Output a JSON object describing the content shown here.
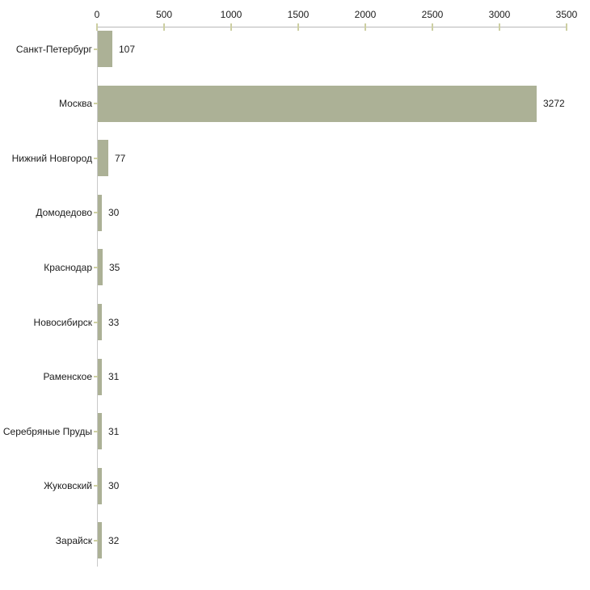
{
  "chart_data": {
    "type": "bar",
    "orientation": "horizontal",
    "title": "",
    "xlabel": "",
    "ylabel": "",
    "categories": [
      "Санкт-Петербург",
      "Москва",
      "Нижний Новгород",
      "Домодедово",
      "Краснодар",
      "Новосибирск",
      "Раменское",
      "Серебряные Пруды",
      "Жуковский",
      "Зарайск"
    ],
    "values": [
      107,
      3272,
      77,
      30,
      35,
      33,
      31,
      31,
      30,
      32
    ],
    "value_labels": [
      "107",
      "3272",
      "77",
      "30",
      "35",
      "33",
      "31",
      "31",
      "30",
      "32"
    ],
    "xlim": [
      0,
      3500
    ],
    "x_ticks": [
      0,
      500,
      1000,
      1500,
      2000,
      2500,
      3000,
      3500
    ],
    "x_tick_labels": [
      "0",
      "500",
      "1000",
      "1500",
      "2000",
      "2500",
      "3000",
      "3500"
    ],
    "axis_position": "top",
    "grid": false,
    "legend": null,
    "bar_color": "#acb196",
    "axis_line_color": "#b8b8b8",
    "axis_vline_color": "#c9c9c9",
    "tick_mark_color": "#cdcfa2",
    "text_color": "#1c1c1c",
    "background_color": "#ffffff"
  }
}
